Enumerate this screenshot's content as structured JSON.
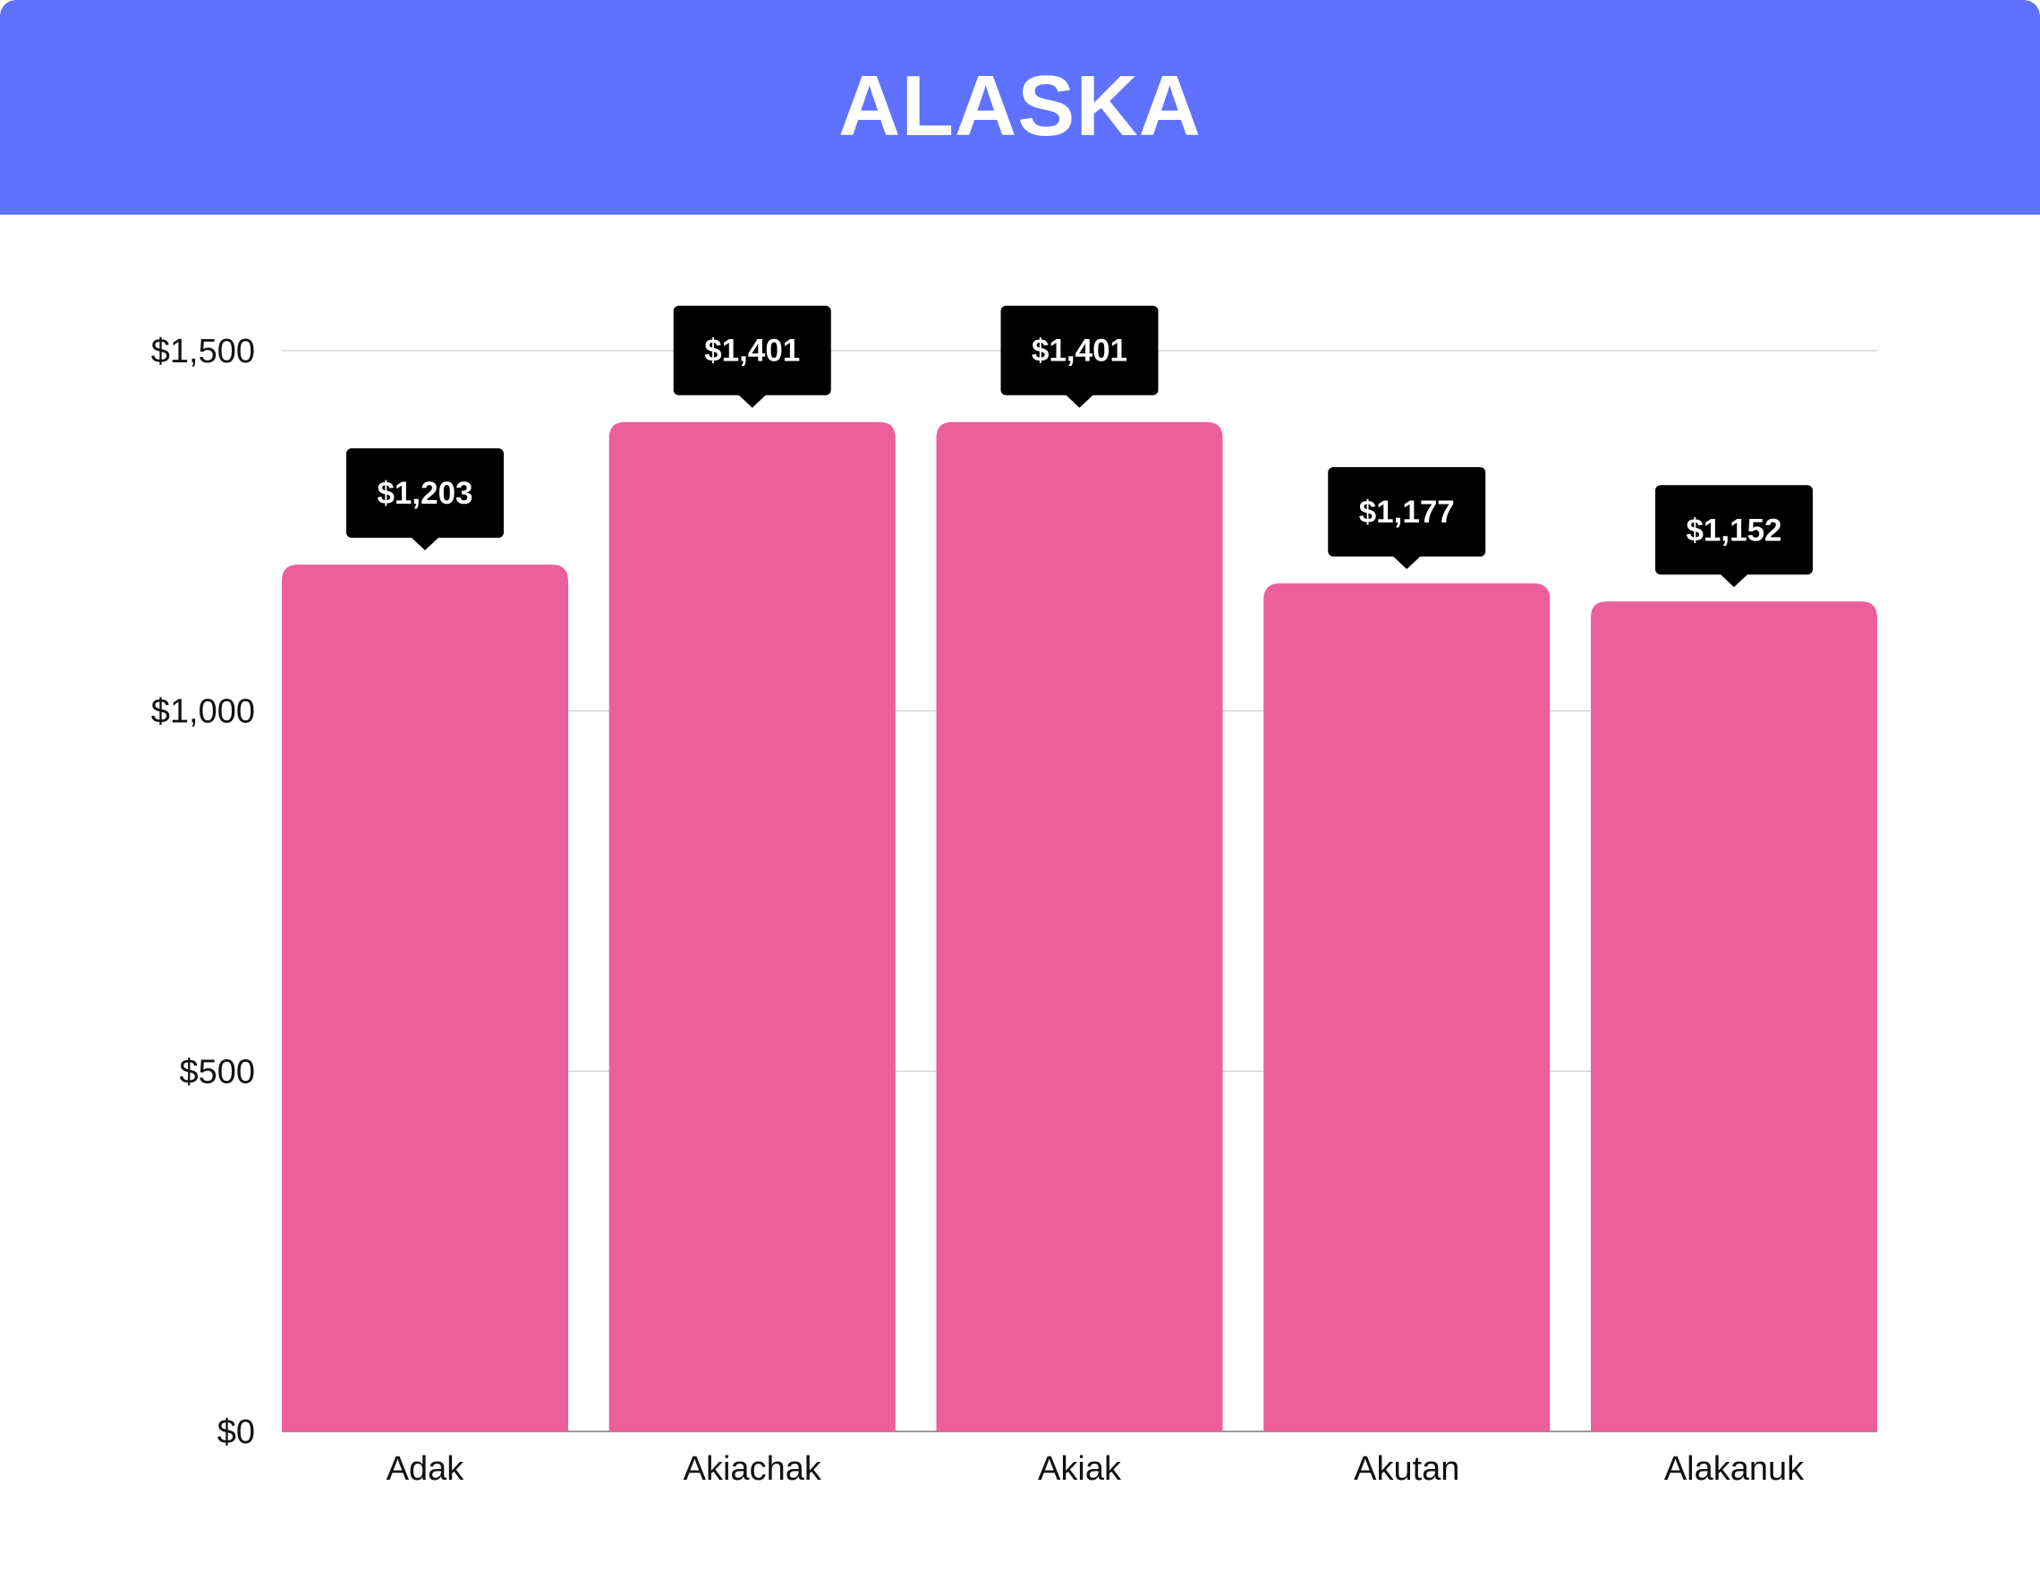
{
  "header": {
    "title": "ALASKA"
  },
  "colors": {
    "header_background": "#5f72ff",
    "bar": "#ec5f9b",
    "tooltip": "#000000",
    "grid": "#d5d5d5"
  },
  "chart_data": {
    "type": "bar",
    "title": "ALASKA",
    "xlabel": "",
    "ylabel": "",
    "categories": [
      "Adak",
      "Akiachak",
      "Akiak",
      "Akutan",
      "Alakanuk"
    ],
    "values": [
      1203,
      1401,
      1401,
      1177,
      1152
    ],
    "data_labels": [
      "$1,203",
      "$1,401",
      "$1,401",
      "$1,177",
      "$1,152"
    ],
    "ylim": [
      0,
      1500
    ],
    "yticks": [
      0,
      500,
      1000,
      1500
    ],
    "ytick_labels": [
      "$0",
      "$500",
      "$1,000",
      "$1,500"
    ],
    "grid": true,
    "legend": "none"
  }
}
